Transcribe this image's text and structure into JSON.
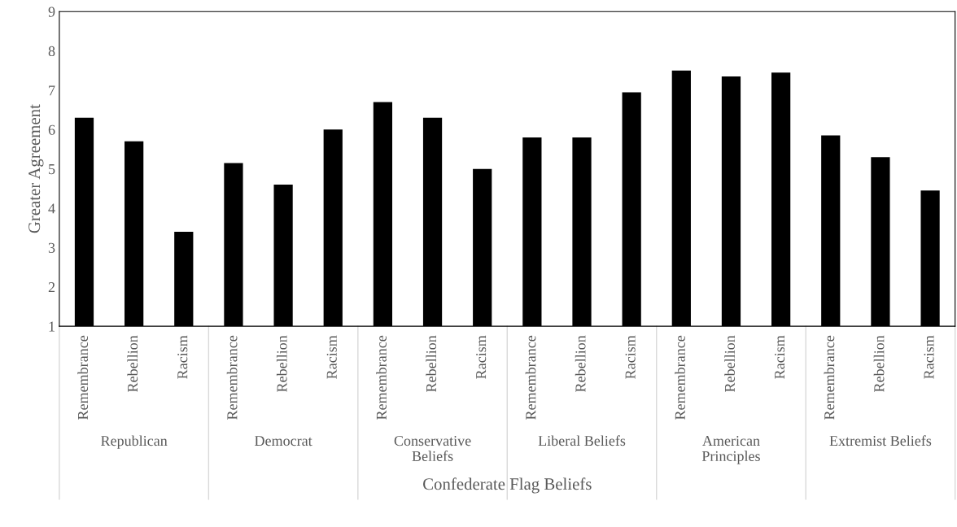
{
  "chart_data": {
    "type": "bar",
    "xlabel": "Confederate Flag Beliefs",
    "ylabel": "Greater Agreement",
    "categories": [
      "Remembrance",
      "Rebellion",
      "Racism",
      "Remembrance",
      "Rebellion",
      "Racism",
      "Remembrance",
      "Rebellion",
      "Racism",
      "Remembrance",
      "Rebellion",
      "Racism",
      "Remembrance",
      "Rebellion",
      "Racism",
      "Remembrance",
      "Rebellion",
      "Racism"
    ],
    "values": [
      6.3,
      5.7,
      3.4,
      5.15,
      4.6,
      6.0,
      6.7,
      6.3,
      5.0,
      5.8,
      5.8,
      6.95,
      7.5,
      7.35,
      7.45,
      5.85,
      5.3,
      4.45
    ],
    "color": "#000000",
    "annotations": [
      "Republican",
      "Democrat",
      "Conservative\nBeliefs",
      "Liberal Beliefs",
      "American\nPrinciples",
      "Extremist Beliefs"
    ],
    "ylim": [
      1,
      9
    ],
    "yticks": [
      1,
      2,
      3,
      4,
      5,
      6,
      7,
      8,
      9
    ],
    "grid": false,
    "legend": false
  }
}
